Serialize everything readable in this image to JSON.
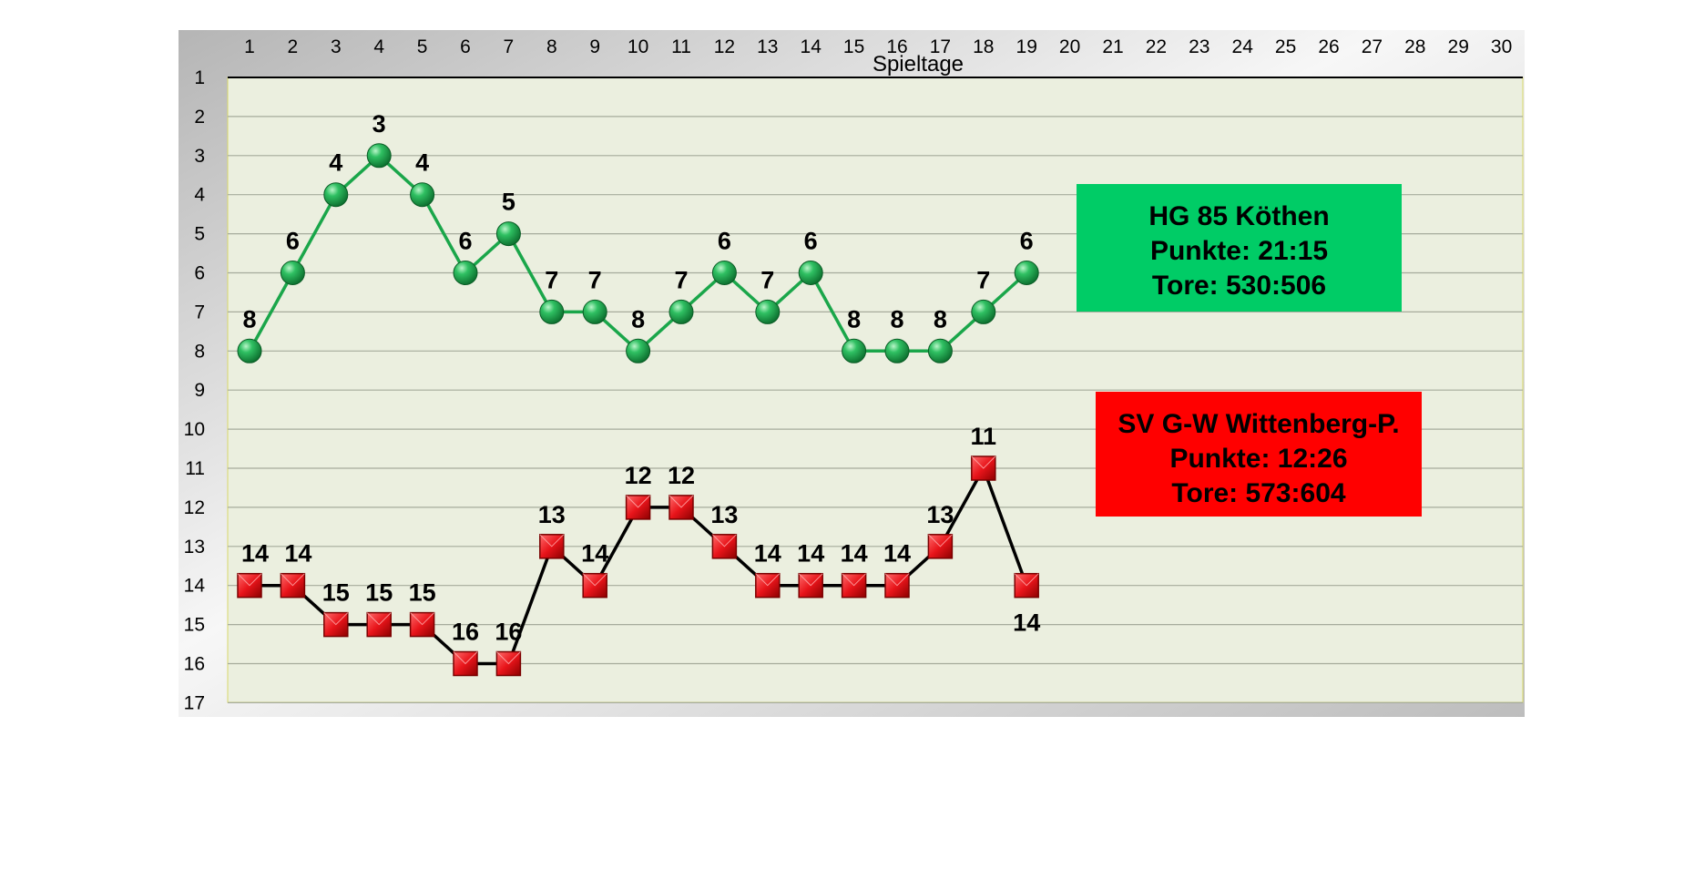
{
  "chart_data": {
    "type": "line",
    "xlabel": "Spieltage",
    "x": [
      1,
      2,
      3,
      4,
      5,
      6,
      7,
      8,
      9,
      10,
      11,
      12,
      13,
      14,
      15,
      16,
      17,
      18,
      19,
      20,
      21,
      22,
      23,
      24,
      25,
      26,
      27,
      28,
      29,
      30
    ],
    "y_ticks": [
      1,
      2,
      3,
      4,
      5,
      6,
      7,
      8,
      9,
      10,
      11,
      12,
      13,
      14,
      15,
      16,
      17
    ],
    "xlim": [
      1,
      30
    ],
    "ylim": [
      17,
      1
    ],
    "y_inverted": true,
    "grid": true,
    "series": [
      {
        "name": "HG 85 Köthen",
        "marker": "circle",
        "color": "#1aa64a",
        "x": [
          1,
          2,
          3,
          4,
          5,
          6,
          7,
          8,
          9,
          10,
          11,
          12,
          13,
          14,
          15,
          16,
          17,
          18,
          19
        ],
        "values": [
          8,
          6,
          4,
          3,
          4,
          6,
          5,
          7,
          7,
          8,
          7,
          6,
          7,
          6,
          8,
          8,
          8,
          7,
          6
        ]
      },
      {
        "name": "SV G-W Wittenberg-P.",
        "marker": "square",
        "color": "#e8141a",
        "x": [
          1,
          2,
          3,
          4,
          5,
          6,
          7,
          8,
          9,
          10,
          11,
          12,
          13,
          14,
          15,
          16,
          17,
          18,
          19
        ],
        "values": [
          14,
          14,
          15,
          15,
          15,
          16,
          16,
          13,
          14,
          12,
          12,
          13,
          14,
          14,
          14,
          14,
          13,
          11,
          14
        ]
      }
    ],
    "info_boxes": [
      {
        "lines": [
          "HG 85 Köthen",
          "Punkte: 21:15",
          "Tore: 530:506"
        ],
        "background": "#00cc66"
      },
      {
        "lines": [
          "SV G-W Wittenberg-P.",
          "Punkte: 12:26",
          "Tore: 573:604"
        ],
        "background": "#ff0000"
      }
    ],
    "colors": {
      "plot_background": "#ebefdf",
      "frame_gradient_light": "#f4f4f4",
      "frame_gradient_dark": "#bdbdbd",
      "grid": "#a6ab9c",
      "green_line": "#1aa64a",
      "black_line": "#000000"
    }
  }
}
